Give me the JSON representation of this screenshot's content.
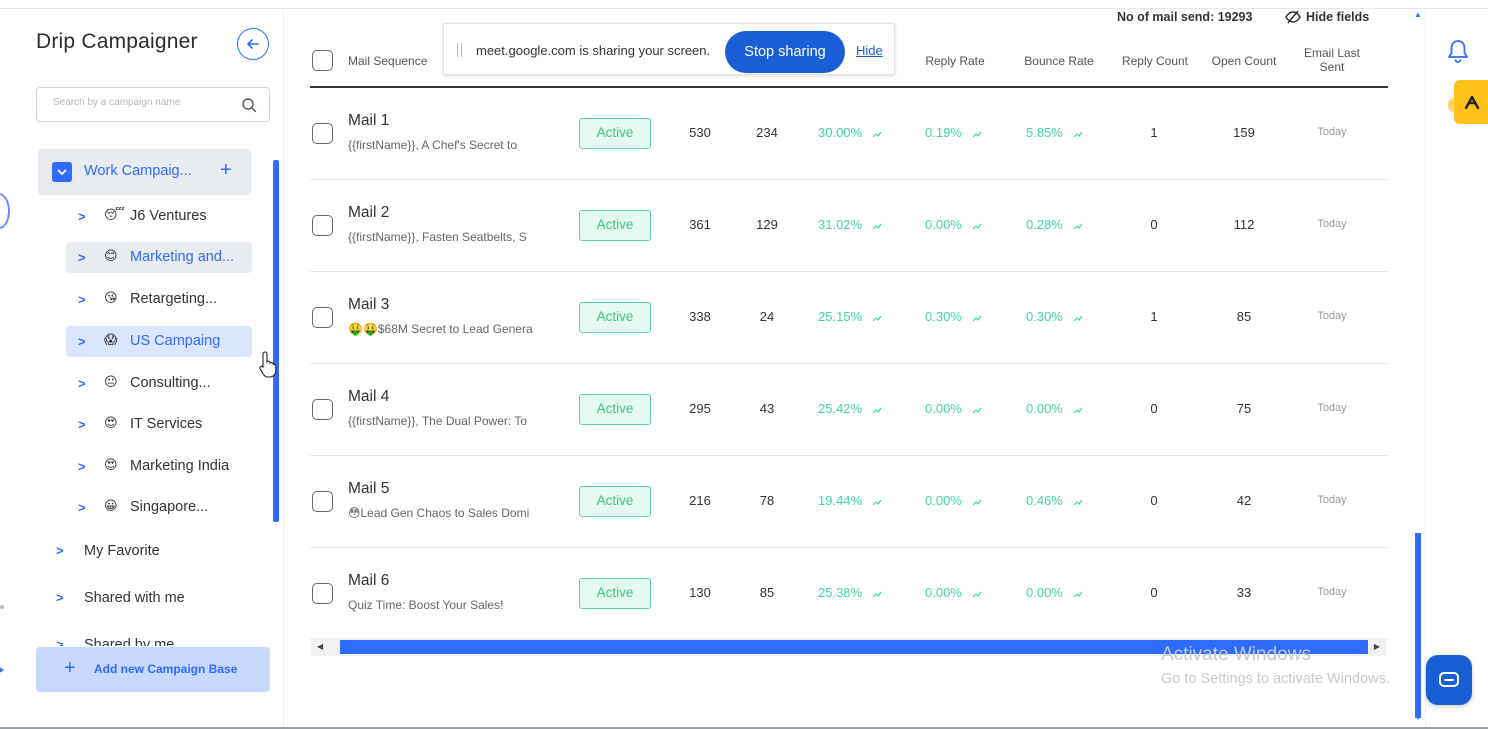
{
  "sidebar": {
    "title": "Drip Campaigner",
    "search_placeholder": "Search by a campaign name",
    "work": {
      "label": "Work Campaig...",
      "plus": "+"
    },
    "children": [
      {
        "label": "J6 Ventures",
        "emoji": "😴"
      },
      {
        "label": "Marketing and...",
        "emoji": "😊"
      },
      {
        "label": "Retargeting...",
        "emoji": "😘"
      },
      {
        "label": "US Campaing",
        "emoji": "😱"
      },
      {
        "label": "Consulting...",
        "emoji": "😐"
      },
      {
        "label": "IT Services",
        "emoji": "😍"
      },
      {
        "label": "Marketing India",
        "emoji": "😍"
      },
      {
        "label": "Singapore...",
        "emoji": "😀"
      }
    ],
    "roots": [
      {
        "label": "My Favorite"
      },
      {
        "label": "Shared with me"
      },
      {
        "label": "Shared by me"
      }
    ],
    "add_button": "Add new Campaign Base"
  },
  "header": {
    "mail_count": "No of mail send: 19293",
    "hide_fields": "Hide fields",
    "columns": {
      "mail_sequence": "Mail Sequence",
      "reply_rate": "Reply Rate",
      "bounce_rate": "Bounce Rate",
      "reply_count": "Reply Count",
      "open_count": "Open Count",
      "email_last_sent": "Email Last Sent"
    }
  },
  "share_popup": {
    "message": "meet.google.com is sharing your screen.",
    "stop": "Stop sharing",
    "hide": "Hide"
  },
  "rows": [
    {
      "title": "Mail 1",
      "sub": "{{firstName}}, A Chef's Secret to",
      "status": "Active",
      "sent": "530",
      "opened": "234",
      "open_rate": "30.00%",
      "reply_rate": "0.19%",
      "bounce_rate": "5.85%",
      "reply_count": "1",
      "open_count": "159",
      "last": "Today"
    },
    {
      "title": "Mail 2",
      "sub": "{{firstName}}, Fasten Seatbelts, S",
      "status": "Active",
      "sent": "361",
      "opened": "129",
      "open_rate": "31.02%",
      "reply_rate": "0.00%",
      "bounce_rate": "0.28%",
      "reply_count": "0",
      "open_count": "112",
      "last": "Today"
    },
    {
      "title": "Mail 3",
      "sub": "🤑🤑$68M Secret to Lead Genera",
      "status": "Active",
      "sent": "338",
      "opened": "24",
      "open_rate": "25.15%",
      "reply_rate": "0.30%",
      "bounce_rate": "0.30%",
      "reply_count": "1",
      "open_count": "85",
      "last": "Today"
    },
    {
      "title": "Mail 4",
      "sub": "{{firstName}}, The Dual Power: To",
      "status": "Active",
      "sent": "295",
      "opened": "43",
      "open_rate": "25.42%",
      "reply_rate": "0.00%",
      "bounce_rate": "0.00%",
      "reply_count": "0",
      "open_count": "75",
      "last": "Today"
    },
    {
      "title": "Mail 5",
      "sub": "😳Lead Gen Chaos to Sales Domi",
      "status": "Active",
      "sent": "216",
      "opened": "78",
      "open_rate": "19.44%",
      "reply_rate": "0.00%",
      "bounce_rate": "0.46%",
      "reply_count": "0",
      "open_count": "42",
      "last": "Today"
    },
    {
      "title": "Mail 6",
      "sub": "Quiz Time: Boost Your Sales!",
      "status": "Active",
      "sent": "130",
      "opened": "85",
      "open_rate": "25.38%",
      "reply_rate": "0.00%",
      "bounce_rate": "0.00%",
      "reply_count": "0",
      "open_count": "33",
      "last": "Today"
    }
  ],
  "watermark": {
    "line1": "Activate Windows",
    "line2": "Go to Settings to activate Windows."
  },
  "colors": {
    "accent": "#2f6bff",
    "status_green": "#3fc38f",
    "rate_green": "#3fd6a0",
    "ext_yellow": "#ffc21a"
  }
}
